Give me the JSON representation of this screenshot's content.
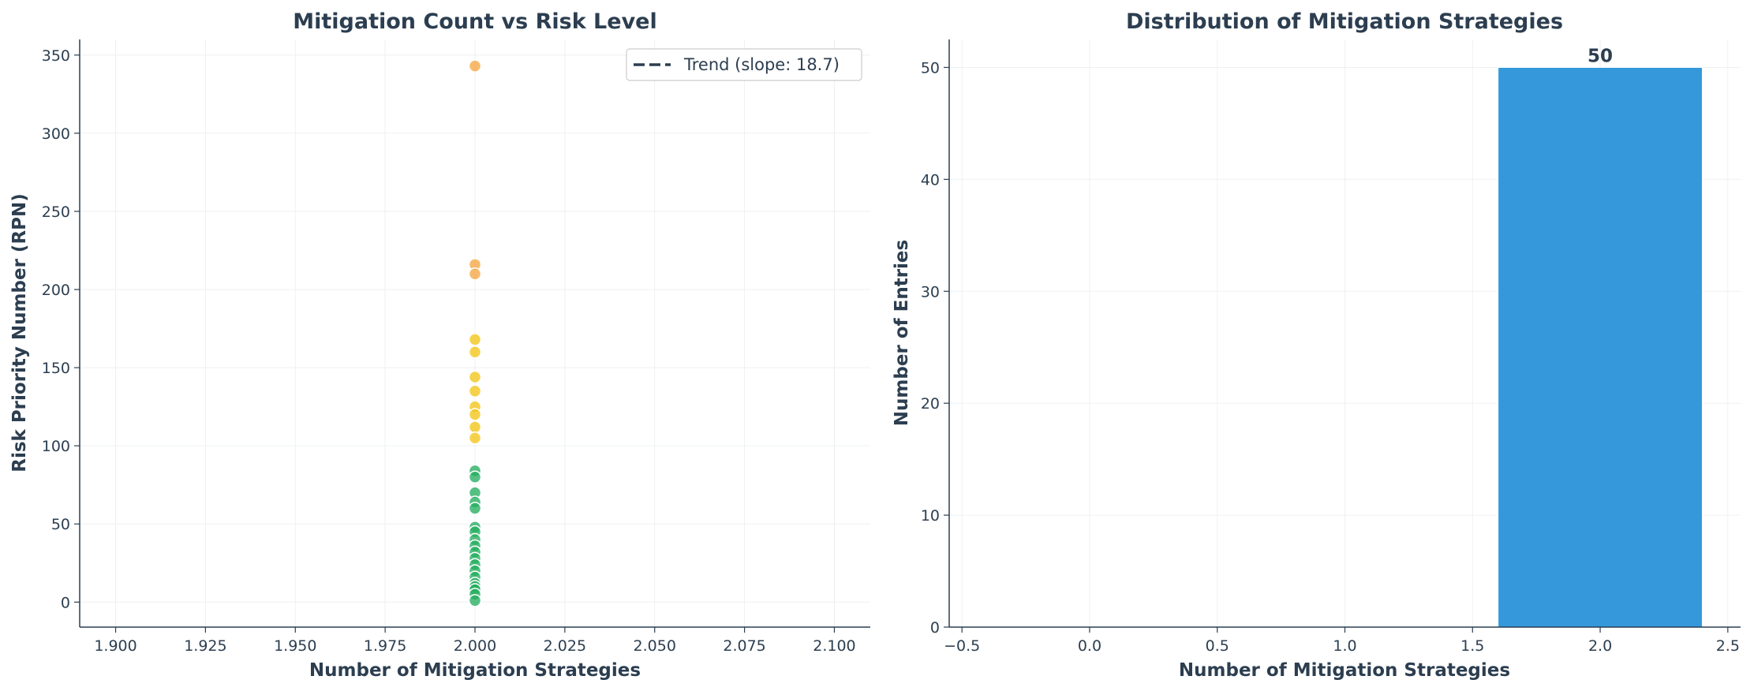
{
  "chart_data": [
    {
      "type": "scatter",
      "title": "Mitigation Count vs Risk Level",
      "xlabel": "Number of Mitigation Strategies",
      "ylabel": "Risk Priority Number (RPN)",
      "xlim": [
        1.89,
        2.11
      ],
      "ylim": [
        -16,
        360
      ],
      "xticks": [
        1.9,
        1.925,
        1.95,
        1.975,
        2.0,
        2.025,
        2.05,
        2.075,
        2.1
      ],
      "xtick_labels": [
        "1.900",
        "1.925",
        "1.950",
        "1.975",
        "2.000",
        "2.025",
        "2.050",
        "2.075",
        "2.100"
      ],
      "yticks": [
        0,
        50,
        100,
        150,
        200,
        250,
        300,
        350
      ],
      "grid": true,
      "legend": {
        "position": "top-right",
        "entries": [
          "Trend (slope: 18.7)"
        ]
      },
      "colors": {
        "high": "#f5a742",
        "medium": "#f4c518",
        "low": "#27ae60",
        "trend": "#2c3e50"
      },
      "points": [
        {
          "x": 2,
          "y": 343,
          "level": "high"
        },
        {
          "x": 2,
          "y": 216,
          "level": "high"
        },
        {
          "x": 2,
          "y": 210,
          "level": "high"
        },
        {
          "x": 2,
          "y": 168,
          "level": "medium"
        },
        {
          "x": 2,
          "y": 160,
          "level": "medium"
        },
        {
          "x": 2,
          "y": 144,
          "level": "medium"
        },
        {
          "x": 2,
          "y": 135,
          "level": "medium"
        },
        {
          "x": 2,
          "y": 125,
          "level": "medium"
        },
        {
          "x": 2,
          "y": 120,
          "level": "medium"
        },
        {
          "x": 2,
          "y": 112,
          "level": "medium"
        },
        {
          "x": 2,
          "y": 105,
          "level": "medium"
        },
        {
          "x": 2,
          "y": 84,
          "level": "low"
        },
        {
          "x": 2,
          "y": 80,
          "level": "low"
        },
        {
          "x": 2,
          "y": 70,
          "level": "low"
        },
        {
          "x": 2,
          "y": 64,
          "level": "low"
        },
        {
          "x": 2,
          "y": 60,
          "level": "low"
        },
        {
          "x": 2,
          "y": 48,
          "level": "low"
        },
        {
          "x": 2,
          "y": 45,
          "level": "low"
        },
        {
          "x": 2,
          "y": 40,
          "level": "low"
        },
        {
          "x": 2,
          "y": 36,
          "level": "low"
        },
        {
          "x": 2,
          "y": 32,
          "level": "low"
        },
        {
          "x": 2,
          "y": 28,
          "level": "low"
        },
        {
          "x": 2,
          "y": 24,
          "level": "low"
        },
        {
          "x": 2,
          "y": 20,
          "level": "low"
        },
        {
          "x": 2,
          "y": 16,
          "level": "low"
        },
        {
          "x": 2,
          "y": 12,
          "level": "low"
        },
        {
          "x": 2,
          "y": 10,
          "level": "low"
        },
        {
          "x": 2,
          "y": 8,
          "level": "low"
        },
        {
          "x": 2,
          "y": 5,
          "level": "low"
        },
        {
          "x": 2,
          "y": 1,
          "level": "low"
        }
      ]
    },
    {
      "type": "bar",
      "title": "Distribution of Mitigation Strategies",
      "xlabel": "Number of Mitigation Strategies",
      "ylabel": "Number of Entries",
      "xlim": [
        -0.55,
        2.55
      ],
      "ylim": [
        0,
        52.5
      ],
      "xticks": [
        -0.5,
        0.0,
        0.5,
        1.0,
        1.5,
        2.0,
        2.5
      ],
      "xtick_labels": [
        "−0.5",
        "0.0",
        "0.5",
        "1.0",
        "1.5",
        "2.0",
        "2.5"
      ],
      "yticks": [
        0,
        10,
        20,
        30,
        40,
        50
      ],
      "grid": true,
      "bar_color": "#3498db",
      "bar_width": 0.8,
      "categories": [
        2
      ],
      "values": [
        50
      ],
      "data_labels": [
        "50"
      ]
    }
  ]
}
